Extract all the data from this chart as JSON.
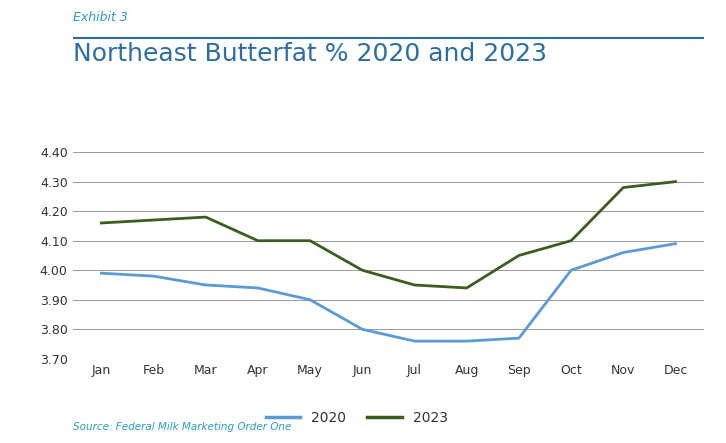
{
  "exhibit_label": "Exhibit 3",
  "title": "Northeast Butterfat % 2020 and 2023",
  "source": "Source: Federal Milk Marketing Order One",
  "months": [
    "Jan",
    "Feb",
    "Mar",
    "Apr",
    "May",
    "Jun",
    "Jul",
    "Aug",
    "Sep",
    "Oct",
    "Nov",
    "Dec"
  ],
  "data_2020": [
    3.99,
    3.98,
    3.95,
    3.94,
    3.9,
    3.8,
    3.76,
    3.76,
    3.77,
    4.0,
    4.06,
    4.09
  ],
  "data_2023": [
    4.16,
    4.17,
    4.18,
    4.1,
    4.1,
    4.0,
    3.95,
    3.94,
    4.05,
    4.1,
    4.28,
    4.3
  ],
  "color_2020": "#5B9BD5",
  "color_2023": "#3A5E1F",
  "ylim": [
    3.7,
    4.45
  ],
  "yticks": [
    3.7,
    3.8,
    3.9,
    4.0,
    4.1,
    4.2,
    4.3,
    4.4
  ],
  "title_color": "#2E6DA4",
  "exhibit_color": "#2E9ACA",
  "source_color": "#2E9ACA",
  "grid_color": "#888888",
  "background_color": "#FFFFFF",
  "line_width": 2.0,
  "legend_2020": "2020",
  "legend_2023": "2023"
}
